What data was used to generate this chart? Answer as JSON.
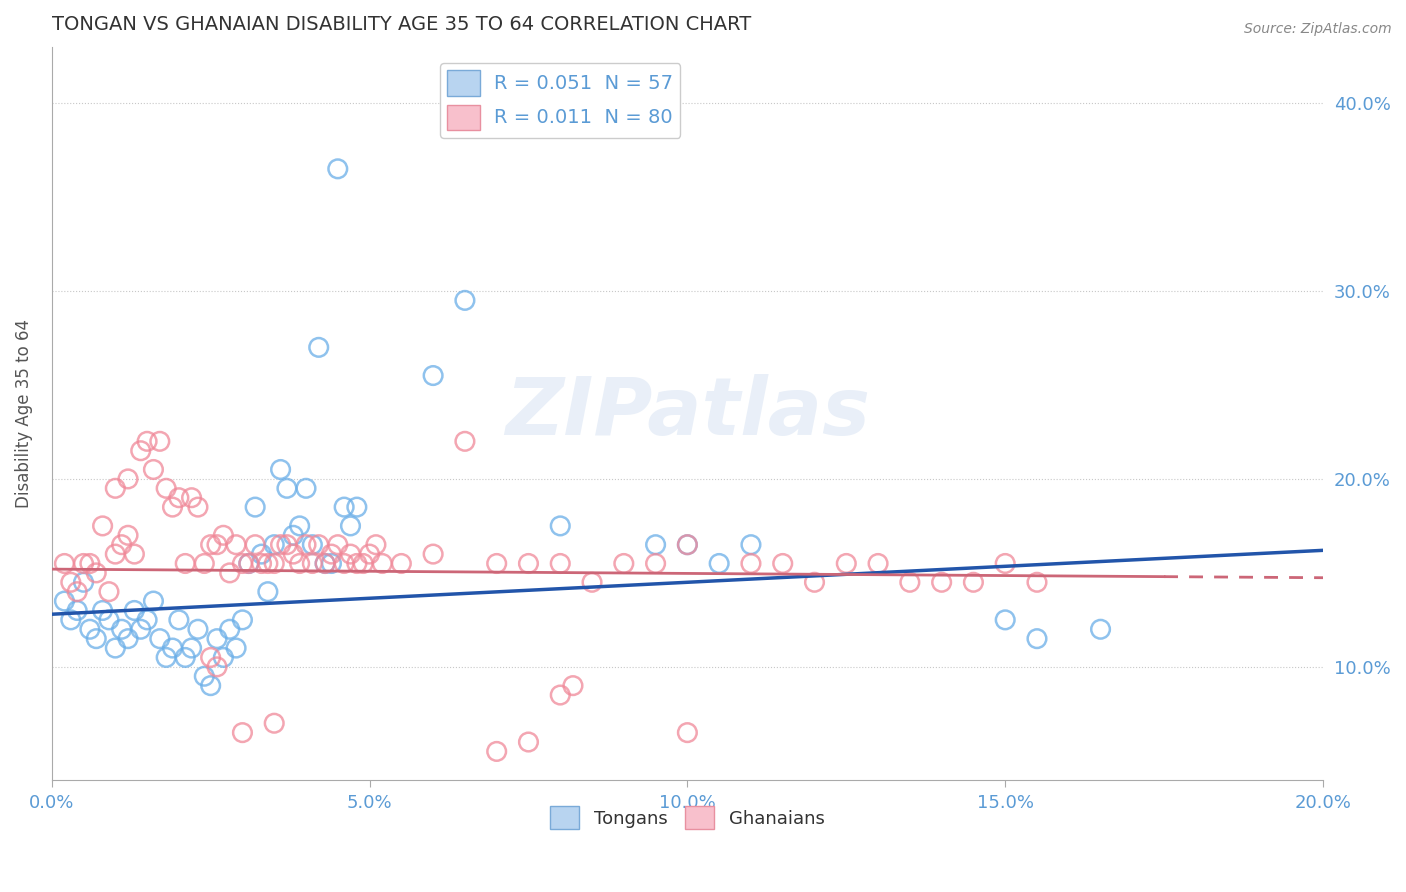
{
  "title": "TONGAN VS GHANAIAN DISABILITY AGE 35 TO 64 CORRELATION CHART",
  "source": "Source: ZipAtlas.com",
  "xlabel_ticks": [
    "0.0%",
    "5.0%",
    "10.0%",
    "15.0%",
    "20.0%"
  ],
  "ylabel_ticks": [
    "10.0%",
    "20.0%",
    "30.0%",
    "40.0%"
  ],
  "xmin": 0.0,
  "xmax": 0.2,
  "ymin": 0.04,
  "ymax": 0.43,
  "watermark": "ZIPatlas",
  "blue_color": "#6aaee8",
  "pink_color": "#f08898",
  "trendline_blue_color": "#2255aa",
  "trendline_pink_color": "#cc6677",
  "axis_label_color": "#5b9bd5",
  "grid_color": "#c8c8c8",
  "ylabel": "Disability Age 35 to 64",
  "blue_scatter": [
    [
      0.002,
      0.135
    ],
    [
      0.003,
      0.125
    ],
    [
      0.004,
      0.13
    ],
    [
      0.005,
      0.145
    ],
    [
      0.006,
      0.12
    ],
    [
      0.007,
      0.115
    ],
    [
      0.008,
      0.13
    ],
    [
      0.009,
      0.125
    ],
    [
      0.01,
      0.11
    ],
    [
      0.011,
      0.12
    ],
    [
      0.012,
      0.115
    ],
    [
      0.013,
      0.13
    ],
    [
      0.014,
      0.12
    ],
    [
      0.015,
      0.125
    ],
    [
      0.016,
      0.135
    ],
    [
      0.017,
      0.115
    ],
    [
      0.018,
      0.105
    ],
    [
      0.019,
      0.11
    ],
    [
      0.02,
      0.125
    ],
    [
      0.021,
      0.105
    ],
    [
      0.022,
      0.11
    ],
    [
      0.023,
      0.12
    ],
    [
      0.024,
      0.095
    ],
    [
      0.025,
      0.09
    ],
    [
      0.026,
      0.115
    ],
    [
      0.027,
      0.105
    ],
    [
      0.028,
      0.12
    ],
    [
      0.029,
      0.11
    ],
    [
      0.03,
      0.125
    ],
    [
      0.031,
      0.155
    ],
    [
      0.032,
      0.185
    ],
    [
      0.033,
      0.16
    ],
    [
      0.034,
      0.14
    ],
    [
      0.035,
      0.165
    ],
    [
      0.036,
      0.205
    ],
    [
      0.037,
      0.195
    ],
    [
      0.038,
      0.17
    ],
    [
      0.039,
      0.175
    ],
    [
      0.04,
      0.195
    ],
    [
      0.041,
      0.165
    ],
    [
      0.042,
      0.27
    ],
    [
      0.043,
      0.155
    ],
    [
      0.044,
      0.155
    ],
    [
      0.045,
      0.365
    ],
    [
      0.046,
      0.185
    ],
    [
      0.047,
      0.175
    ],
    [
      0.048,
      0.185
    ],
    [
      0.06,
      0.255
    ],
    [
      0.065,
      0.295
    ],
    [
      0.08,
      0.175
    ],
    [
      0.095,
      0.165
    ],
    [
      0.1,
      0.165
    ],
    [
      0.105,
      0.155
    ],
    [
      0.11,
      0.165
    ],
    [
      0.15,
      0.125
    ],
    [
      0.155,
      0.115
    ],
    [
      0.165,
      0.12
    ]
  ],
  "pink_scatter": [
    [
      0.002,
      0.155
    ],
    [
      0.003,
      0.145
    ],
    [
      0.004,
      0.14
    ],
    [
      0.005,
      0.155
    ],
    [
      0.006,
      0.155
    ],
    [
      0.007,
      0.15
    ],
    [
      0.008,
      0.175
    ],
    [
      0.009,
      0.14
    ],
    [
      0.01,
      0.16
    ],
    [
      0.011,
      0.165
    ],
    [
      0.012,
      0.17
    ],
    [
      0.013,
      0.16
    ],
    [
      0.014,
      0.215
    ],
    [
      0.015,
      0.22
    ],
    [
      0.016,
      0.205
    ],
    [
      0.017,
      0.22
    ],
    [
      0.018,
      0.195
    ],
    [
      0.019,
      0.185
    ],
    [
      0.02,
      0.19
    ],
    [
      0.021,
      0.155
    ],
    [
      0.022,
      0.19
    ],
    [
      0.023,
      0.185
    ],
    [
      0.024,
      0.155
    ],
    [
      0.025,
      0.165
    ],
    [
      0.026,
      0.165
    ],
    [
      0.027,
      0.17
    ],
    [
      0.028,
      0.15
    ],
    [
      0.029,
      0.165
    ],
    [
      0.03,
      0.155
    ],
    [
      0.031,
      0.155
    ],
    [
      0.032,
      0.165
    ],
    [
      0.033,
      0.155
    ],
    [
      0.034,
      0.155
    ],
    [
      0.035,
      0.155
    ],
    [
      0.036,
      0.165
    ],
    [
      0.037,
      0.165
    ],
    [
      0.038,
      0.16
    ],
    [
      0.039,
      0.155
    ],
    [
      0.04,
      0.165
    ],
    [
      0.041,
      0.155
    ],
    [
      0.042,
      0.165
    ],
    [
      0.043,
      0.155
    ],
    [
      0.044,
      0.16
    ],
    [
      0.045,
      0.165
    ],
    [
      0.046,
      0.155
    ],
    [
      0.047,
      0.16
    ],
    [
      0.048,
      0.155
    ],
    [
      0.049,
      0.155
    ],
    [
      0.05,
      0.16
    ],
    [
      0.051,
      0.165
    ],
    [
      0.052,
      0.155
    ],
    [
      0.055,
      0.155
    ],
    [
      0.06,
      0.16
    ],
    [
      0.065,
      0.22
    ],
    [
      0.07,
      0.155
    ],
    [
      0.075,
      0.155
    ],
    [
      0.08,
      0.155
    ],
    [
      0.085,
      0.145
    ],
    [
      0.09,
      0.155
    ],
    [
      0.095,
      0.155
    ],
    [
      0.1,
      0.165
    ],
    [
      0.11,
      0.155
    ],
    [
      0.115,
      0.155
    ],
    [
      0.12,
      0.145
    ],
    [
      0.125,
      0.155
    ],
    [
      0.13,
      0.155
    ],
    [
      0.135,
      0.145
    ],
    [
      0.14,
      0.145
    ],
    [
      0.145,
      0.145
    ],
    [
      0.15,
      0.155
    ],
    [
      0.155,
      0.145
    ],
    [
      0.03,
      0.065
    ],
    [
      0.035,
      0.07
    ],
    [
      0.07,
      0.055
    ],
    [
      0.075,
      0.06
    ],
    [
      0.1,
      0.065
    ],
    [
      0.08,
      0.085
    ],
    [
      0.082,
      0.09
    ],
    [
      0.025,
      0.105
    ],
    [
      0.026,
      0.1
    ],
    [
      0.01,
      0.195
    ],
    [
      0.012,
      0.2
    ]
  ],
  "blue_trendline": [
    [
      0.0,
      0.128
    ],
    [
      0.2,
      0.162
    ]
  ],
  "pink_trendline": [
    [
      0.0,
      0.152
    ],
    [
      0.175,
      0.148
    ]
  ]
}
